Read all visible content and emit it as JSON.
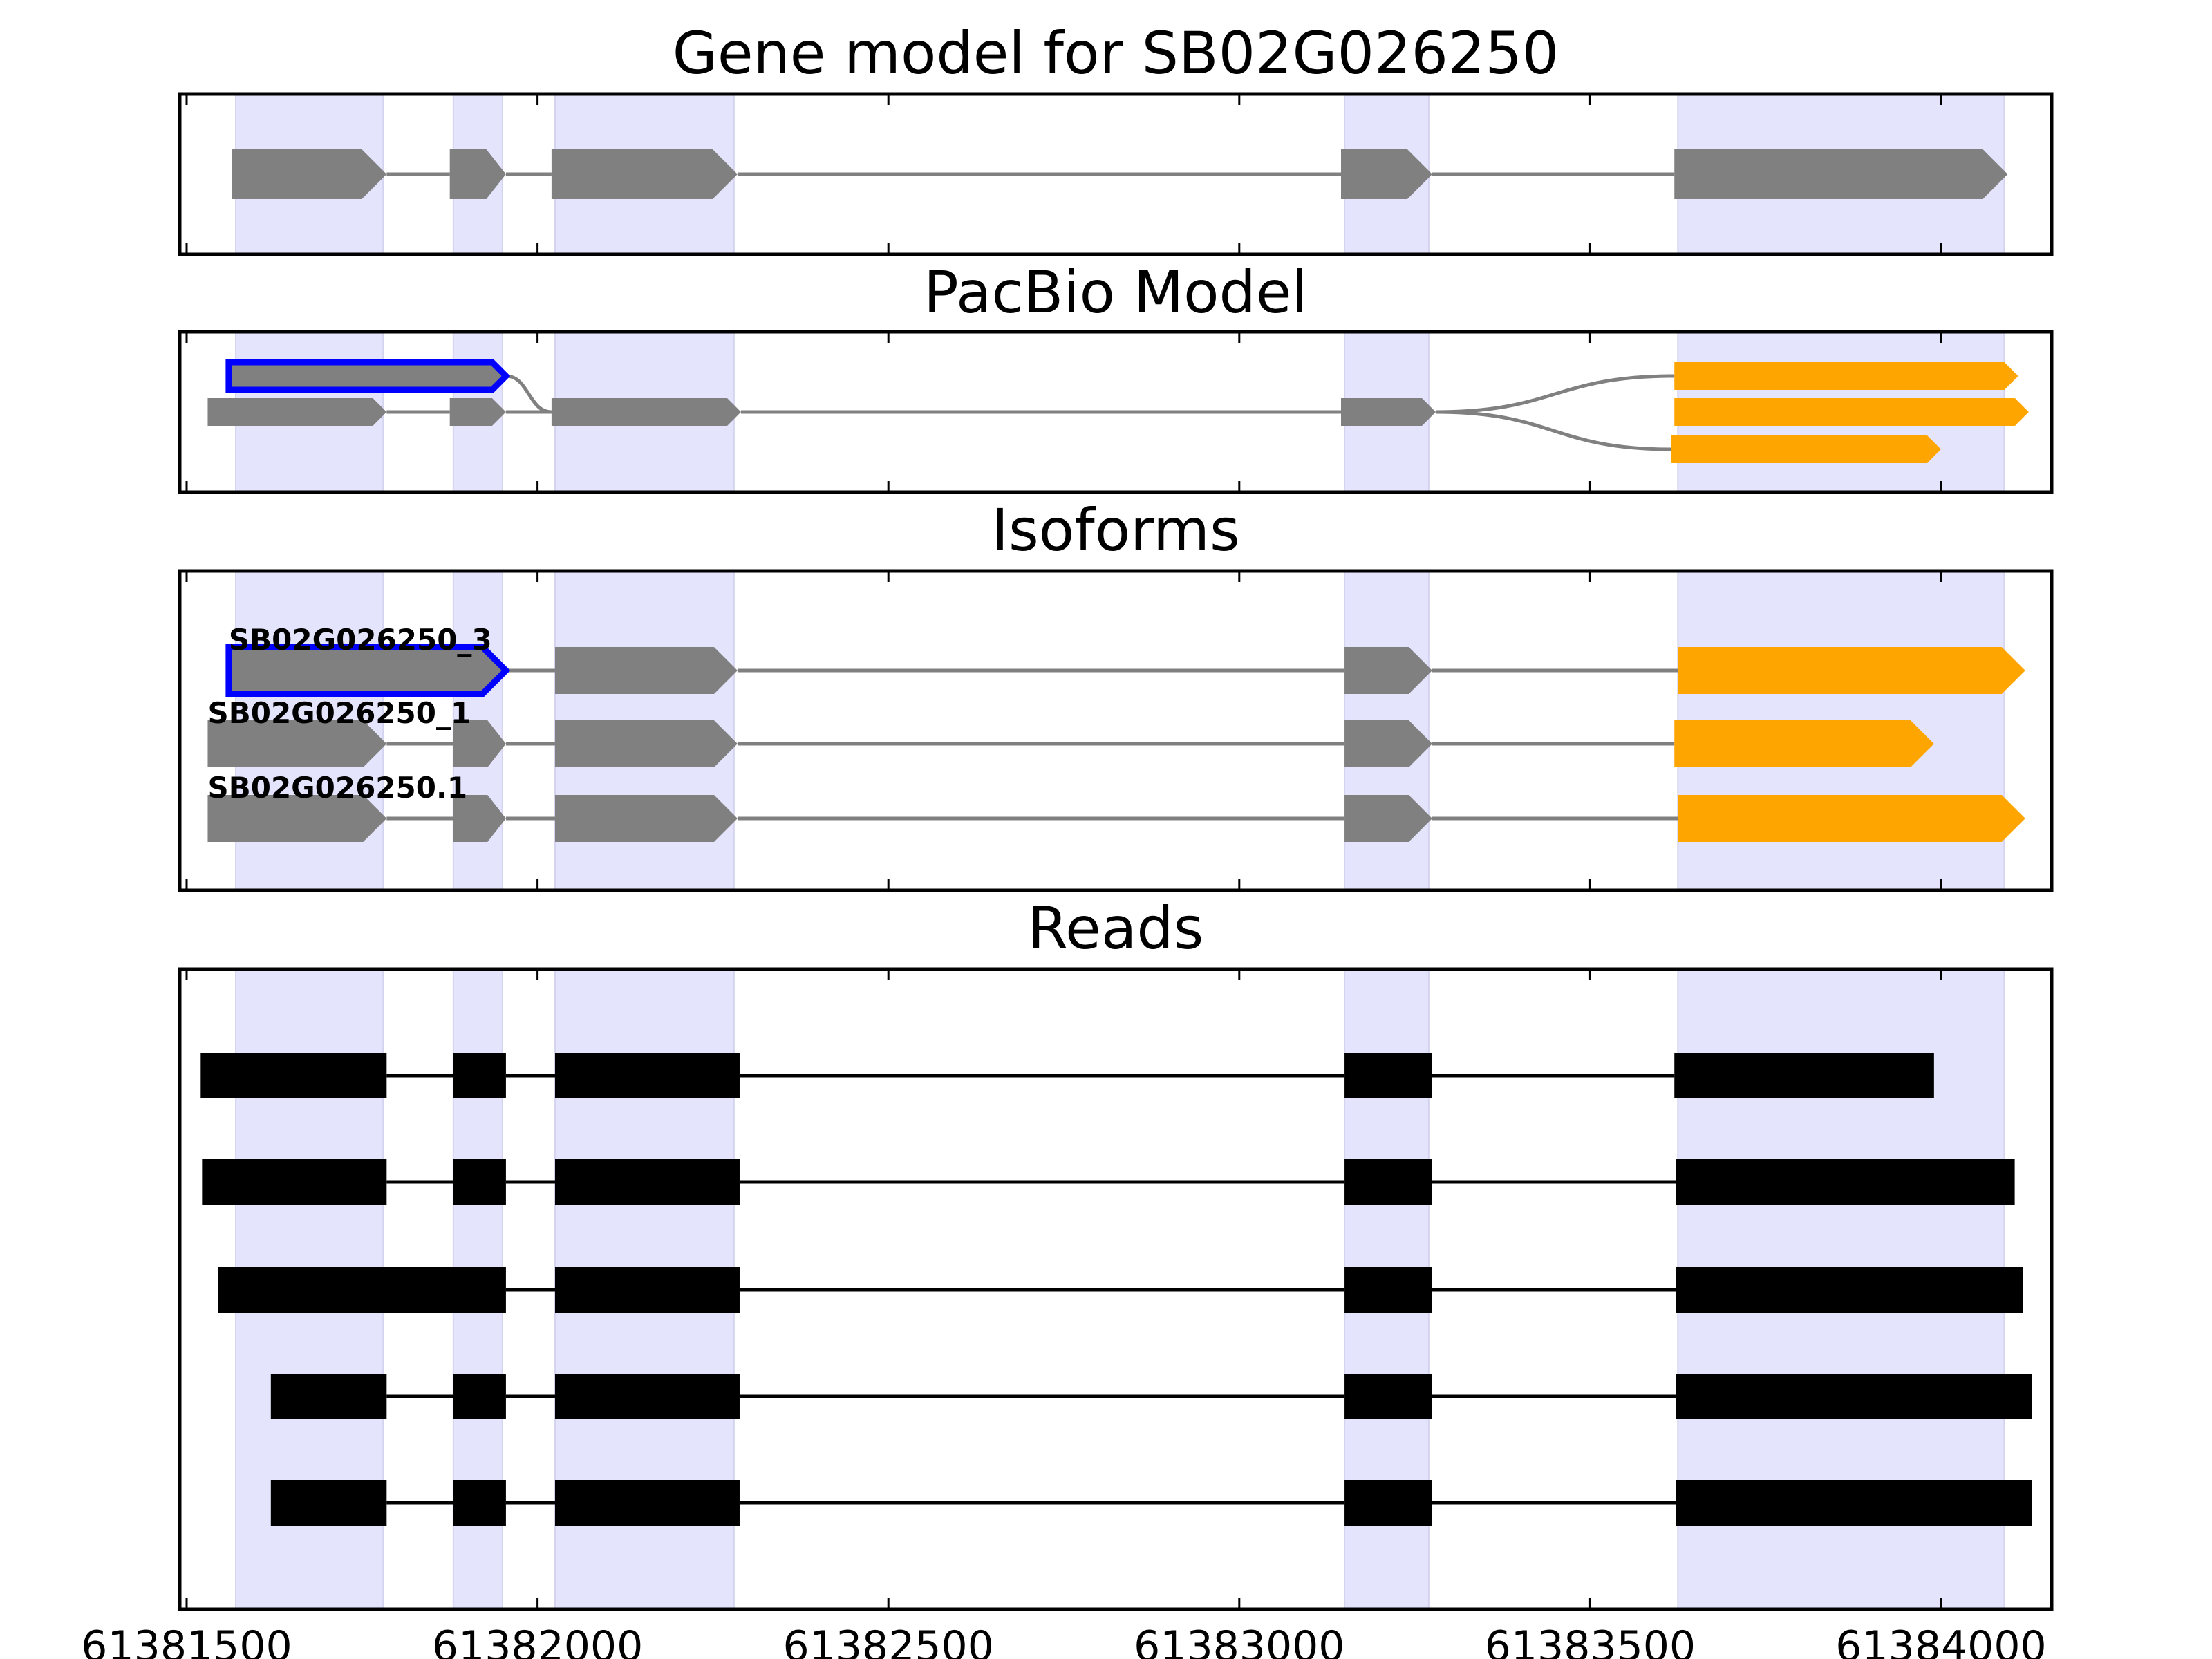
{
  "chart_data": {
    "type": "gene-model",
    "colors": {
      "exon": "#808080",
      "intron": "#808080",
      "utr": "#ffa500",
      "highlight_outline": "#0000ff",
      "shade": "#e4e4fc",
      "read": "#000000"
    },
    "x_ticks": [
      61381500,
      61382000,
      61382500,
      61383000,
      61383500,
      61384000
    ],
    "shaded_regions": [
      [
        61381570,
        61381780
      ],
      [
        61381880,
        61381950
      ],
      [
        61382025,
        61382280
      ],
      [
        61383150,
        61383270
      ],
      [
        61383625,
        61384090
      ]
    ],
    "panels": [
      {
        "id": "gene",
        "title": "Gene model for SB02G026250",
        "tracks": [
          {
            "row": 1,
            "exons": [
              [
                61381565,
                61381785
              ],
              [
                61381875,
                61381955
              ],
              [
                61382020,
                61382285
              ],
              [
                61383145,
                61383275
              ],
              [
                61383620,
                61384095
              ]
            ],
            "utr_from": null,
            "outline": false,
            "label": ""
          }
        ]
      },
      {
        "id": "pacbio",
        "title": "PacBio Model",
        "tracks": [
          {
            "row": 1,
            "exons": [
              [
                61381560,
                61381955
              ]
            ],
            "join": [
              61382020,
              2
            ],
            "outline": true,
            "label": ""
          },
          {
            "row": 2,
            "exons": [
              [
                61381530,
                61381785
              ],
              [
                61381875,
                61381955
              ],
              [
                61382020,
                61382290
              ],
              [
                61383145,
                61383280
              ]
            ],
            "outline": false,
            "label": ""
          },
          {
            "row": 1,
            "exons": [
              [
                61383620,
                61384110
              ]
            ],
            "join": [
              61383280,
              2
            ],
            "orange": true,
            "outline": false,
            "label": ""
          },
          {
            "row": 2,
            "exons": [
              [
                61383620,
                61384125
              ]
            ],
            "orange": true,
            "outline": false,
            "label": ""
          },
          {
            "row": 3,
            "exons": [
              [
                61383615,
                61384000
              ]
            ],
            "join": [
              61383280,
              2
            ],
            "orange": true,
            "outline": false,
            "label": ""
          }
        ]
      },
      {
        "id": "isoforms",
        "title": "Isoforms",
        "tracks": [
          {
            "row": 1,
            "label": "SB02G026250_3",
            "outline": true,
            "exons": [
              [
                61381560,
                61381955
              ],
              [
                61382025,
                61382285
              ],
              [
                61383150,
                61383275
              ],
              [
                61383625,
                61384120
              ]
            ],
            "utr_index": 3
          },
          {
            "row": 2,
            "label": "SB02G026250_1",
            "outline": false,
            "exons": [
              [
                61381530,
                61381785
              ],
              [
                61381880,
                61381955
              ],
              [
                61382025,
                61382285
              ],
              [
                61383150,
                61383275
              ],
              [
                61383620,
                61383990
              ]
            ],
            "utr_index": 4
          },
          {
            "row": 3,
            "label": "SB02G026250.1",
            "outline": false,
            "exons": [
              [
                61381530,
                61381785
              ],
              [
                61381880,
                61381955
              ],
              [
                61382025,
                61382285
              ],
              [
                61383150,
                61383275
              ],
              [
                61383625,
                61384120
              ]
            ],
            "utr_index": 4
          }
        ]
      },
      {
        "id": "reads",
        "title": "Reads",
        "tracks": [
          {
            "row": 1,
            "exons": [
              [
                61381520,
                61381785
              ],
              [
                61381880,
                61381955
              ],
              [
                61382025,
                61382288
              ],
              [
                61383150,
                61383275
              ],
              [
                61383620,
                61383990
              ]
            ]
          },
          {
            "row": 2,
            "exons": [
              [
                61381522,
                61381785
              ],
              [
                61381880,
                61381955
              ],
              [
                61382025,
                61382288
              ],
              [
                61383150,
                61383275
              ],
              [
                61383622,
                61384105
              ]
            ]
          },
          {
            "row": 3,
            "exons": [
              [
                61381545,
                61381955
              ],
              [
                61382025,
                61382288
              ],
              [
                61383150,
                61383275
              ],
              [
                61383622,
                61384117
              ]
            ]
          },
          {
            "row": 4,
            "exons": [
              [
                61381620,
                61381785
              ],
              [
                61381880,
                61381955
              ],
              [
                61382025,
                61382288
              ],
              [
                61383150,
                61383275
              ],
              [
                61383622,
                61384130
              ]
            ]
          },
          {
            "row": 5,
            "exons": [
              [
                61381620,
                61381785
              ],
              [
                61381880,
                61381955
              ],
              [
                61382025,
                61382288
              ],
              [
                61383150,
                61383275
              ],
              [
                61383622,
                61384130
              ]
            ]
          }
        ]
      }
    ]
  }
}
